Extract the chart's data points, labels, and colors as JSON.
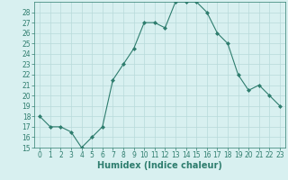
{
  "xlabel": "Humidex (Indice chaleur)",
  "x": [
    0,
    1,
    2,
    3,
    4,
    5,
    6,
    7,
    8,
    9,
    10,
    11,
    12,
    13,
    14,
    15,
    16,
    17,
    18,
    19,
    20,
    21,
    22,
    23
  ],
  "y": [
    18,
    17,
    17,
    16.5,
    15,
    16,
    17,
    21.5,
    23,
    24.5,
    27,
    27,
    26.5,
    29,
    29,
    29,
    28,
    26,
    25,
    22,
    20.5,
    21,
    20,
    19
  ],
  "line_color": "#2e7d6e",
  "marker": "D",
  "marker_size": 2,
  "bg_color": "#d8f0f0",
  "grid_color": "#b8dada",
  "ylim": [
    15,
    29
  ],
  "xlim": [
    -0.5,
    23.5
  ],
  "yticks": [
    15,
    16,
    17,
    18,
    19,
    20,
    21,
    22,
    23,
    24,
    25,
    26,
    27,
    28
  ],
  "xticks": [
    0,
    1,
    2,
    3,
    4,
    5,
    6,
    7,
    8,
    9,
    10,
    11,
    12,
    13,
    14,
    15,
    16,
    17,
    18,
    19,
    20,
    21,
    22,
    23
  ],
  "tick_fontsize": 5.5,
  "xlabel_fontsize": 7,
  "axis_color": "#2e7d6e"
}
